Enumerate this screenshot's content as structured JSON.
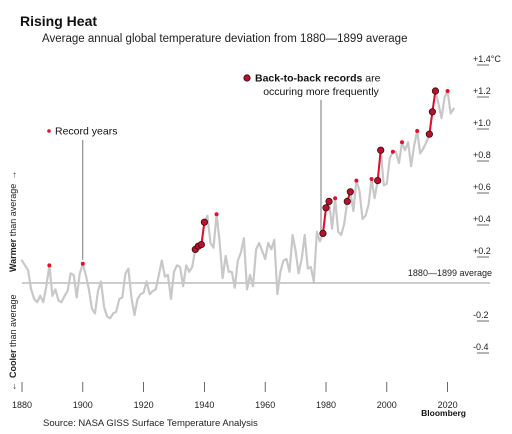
{
  "header": {
    "title": "Rising Heat",
    "subtitle": "Average annual global temperature deviation from 1880—1899 average"
  },
  "annotations": {
    "record_years": "Record years",
    "b2b_bold": "Back-to-back records",
    "b2b_rest": " are",
    "b2b_line2": "occuring more frequently",
    "baseline": "1880—1899 average",
    "warmer_bold": "Warmer",
    "warmer_rest": " than average",
    "warmer_arrow": "→",
    "cooler_bold": "Cooler",
    "cooler_rest": " than average",
    "cooler_arrow": "←"
  },
  "footer": {
    "source": "Source: NASA GISS Surface Temperature Analysis",
    "brand": "Bloomberg"
  },
  "colors": {
    "line": "#c8c8c8",
    "record": "#e0112b",
    "backtoback": "#e0112b",
    "baseline": "#9a9a9a",
    "grid": "#444444"
  },
  "chart_data": {
    "type": "line",
    "title": "Rising Heat",
    "subtitle": "Average annual global temperature deviation from 1880—1899 average",
    "xlabel": "",
    "ylabel": "",
    "xlim": [
      1878,
      2024
    ],
    "ylim": [
      -0.5,
      1.5
    ],
    "x_ticks": [
      1880,
      1900,
      1920,
      1940,
      1960,
      1980,
      2000,
      2020
    ],
    "x_tick_labels": [
      "1880",
      "1900",
      "1920",
      "1940",
      "1960",
      "1980",
      "2000",
      "2020"
    ],
    "y_ticks": [
      -0.4,
      -0.2,
      0.2,
      0.4,
      0.6,
      0.8,
      1.0,
      1.2,
      1.4
    ],
    "y_tick_labels": [
      "-0.4",
      "-0.2",
      "+0.2",
      "+0.4",
      "+0.6",
      "+0.8",
      "+1.0",
      "+1.2",
      "+1.4°C"
    ],
    "baseline_value": 0,
    "series": [
      {
        "x": [
          1880,
          1881,
          1882,
          1883,
          1884,
          1885,
          1886,
          1887,
          1888,
          1889,
          1890,
          1891,
          1892,
          1893,
          1894,
          1895,
          1896,
          1897,
          1898,
          1899,
          1900,
          1901,
          1902,
          1903,
          1904,
          1905,
          1906,
          1907,
          1908,
          1909,
          1910,
          1911,
          1912,
          1913,
          1914,
          1915,
          1916,
          1917,
          1918,
          1919,
          1920,
          1921,
          1922,
          1923,
          1924,
          1925,
          1926,
          1927,
          1928,
          1929,
          1930,
          1931,
          1932,
          1933,
          1934,
          1935,
          1936,
          1937,
          1938,
          1939,
          1940,
          1941,
          1942,
          1943,
          1944,
          1945,
          1946,
          1947,
          1948,
          1949,
          1950,
          1951,
          1952,
          1953,
          1954,
          1955,
          1956,
          1957,
          1958,
          1959,
          1960,
          1961,
          1962,
          1963,
          1964,
          1965,
          1966,
          1967,
          1968,
          1969,
          1970,
          1971,
          1972,
          1973,
          1974,
          1975,
          1976,
          1977,
          1978,
          1979,
          1980,
          1981,
          1982,
          1983,
          1984,
          1985,
          1986,
          1987,
          1988,
          1989,
          1990,
          1991,
          1992,
          1993,
          1994,
          1995,
          1996,
          1997,
          1998,
          1999,
          2000,
          2001,
          2002,
          2003,
          2004,
          2005,
          2006,
          2007,
          2008,
          2009,
          2010,
          2011,
          2012,
          2013,
          2014,
          2015,
          2016,
          2017,
          2018,
          2019,
          2020,
          2021,
          2022
        ],
        "values": [
          0.14,
          0.11,
          0.08,
          -0.04,
          -0.1,
          -0.12,
          -0.08,
          -0.12,
          -0.02,
          0.11,
          -0.08,
          -0.04,
          -0.11,
          -0.12,
          -0.08,
          -0.05,
          0.06,
          0.05,
          -0.09,
          0.06,
          0.12,
          0.05,
          -0.04,
          -0.16,
          -0.19,
          -0.05,
          0.01,
          -0.15,
          -0.21,
          -0.22,
          -0.19,
          -0.18,
          -0.1,
          -0.09,
          0.06,
          0.09,
          -0.09,
          -0.2,
          -0.1,
          -0.07,
          -0.06,
          0.01,
          -0.07,
          -0.05,
          -0.04,
          0.05,
          0.14,
          0.04,
          0.05,
          -0.1,
          0.07,
          0.11,
          0.1,
          -0.02,
          0.11,
          0.07,
          0.1,
          0.21,
          0.23,
          0.24,
          0.38,
          0.42,
          0.25,
          0.22,
          0.43,
          0.26,
          0.03,
          0.17,
          0.07,
          0.07,
          -0.03,
          0.14,
          0.19,
          0.28,
          -0.04,
          0.05,
          -0.02,
          0.21,
          0.25,
          0.2,
          0.15,
          0.25,
          0.21,
          0.27,
          -0.07,
          0.07,
          0.14,
          0.15,
          0.07,
          0.3,
          0.2,
          0.06,
          0.15,
          0.3,
          0.09,
          0.1,
          0.01,
          0.32,
          0.26,
          0.31,
          0.47,
          0.51,
          0.34,
          0.53,
          0.32,
          0.3,
          0.37,
          0.51,
          0.57,
          0.45,
          0.64,
          0.58,
          0.4,
          0.42,
          0.49,
          0.65,
          0.53,
          0.64,
          0.83,
          0.61,
          0.62,
          0.78,
          0.82,
          0.82,
          0.75,
          0.88,
          0.83,
          0.88,
          0.73,
          0.86,
          0.95,
          0.81,
          0.84,
          0.88,
          0.93,
          1.07,
          1.2,
          1.12,
          1.03,
          1.16,
          1.2,
          1.06,
          1.09
        ]
      }
    ],
    "record_years": [
      1889,
      1900,
      1937,
      1938,
      1939,
      1940,
      1944,
      1979,
      1980,
      1981,
      1983,
      1987,
      1988,
      1990,
      1995,
      1997,
      1998,
      2002,
      2005,
      2010,
      2014,
      2015,
      2016,
      2020
    ],
    "back_to_back_runs": [
      [
        1937,
        1938,
        1939,
        1940
      ],
      [
        1979,
        1980,
        1981
      ],
      [
        1987,
        1988
      ],
      [
        1997,
        1998
      ],
      [
        2014,
        2015,
        2016
      ]
    ]
  }
}
